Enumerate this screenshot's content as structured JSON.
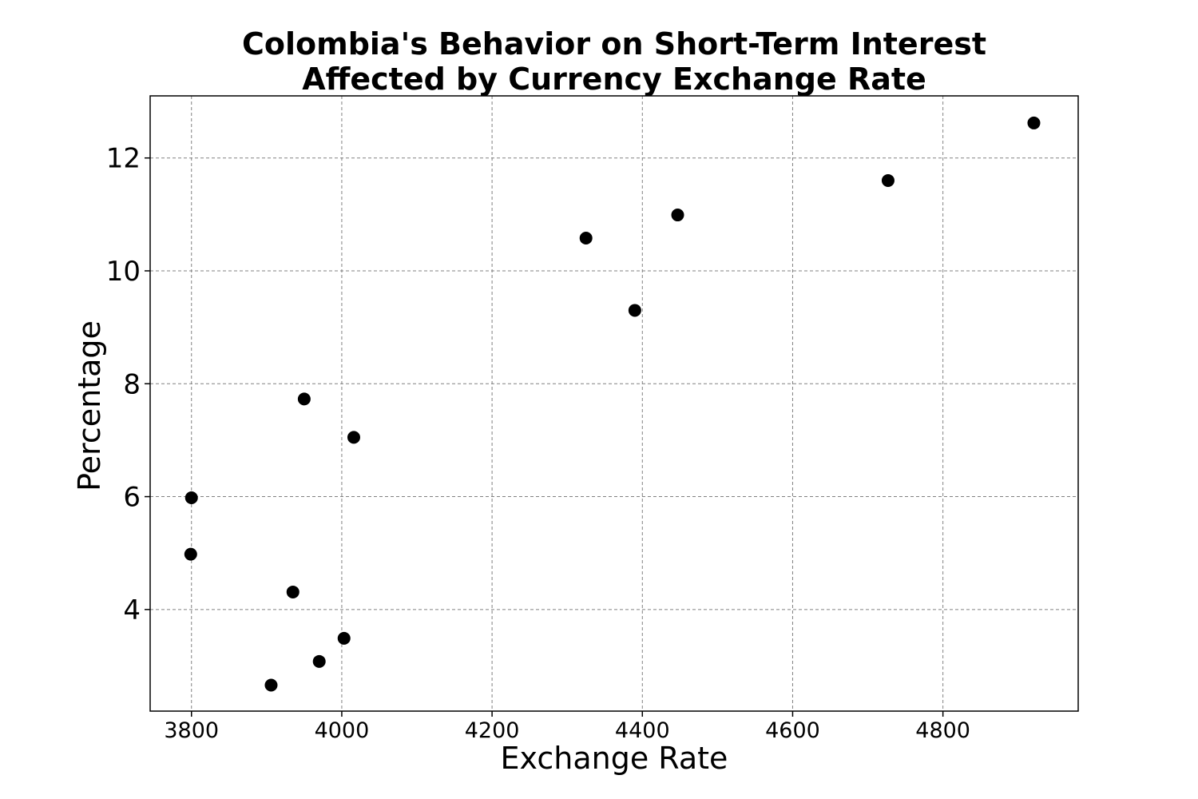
{
  "chart_data": {
    "type": "scatter",
    "title": "Colombia's Behavior on Short-Term Interest\nAffected by Currency Exchange Rate",
    "xlabel": "Exchange Rate",
    "ylabel": "Percentage",
    "xlim": [
      3745,
      4980
    ],
    "ylim": [
      2.2,
      13.1
    ],
    "xticks": [
      3800,
      4000,
      4200,
      4400,
      4600,
      4800
    ],
    "yticks": [
      4,
      6,
      8,
      10,
      12
    ],
    "grid": true,
    "marker_color": "#000000",
    "series": [
      {
        "points": [
          {
            "x": 3800,
            "y": 5.98
          },
          {
            "x": 3799,
            "y": 4.98
          },
          {
            "x": 3950,
            "y": 7.73
          },
          {
            "x": 4016,
            "y": 7.05
          },
          {
            "x": 3935,
            "y": 4.31
          },
          {
            "x": 3906,
            "y": 2.66
          },
          {
            "x": 3970,
            "y": 3.08
          },
          {
            "x": 4003,
            "y": 3.49
          },
          {
            "x": 4325,
            "y": 10.58
          },
          {
            "x": 4390,
            "y": 9.3
          },
          {
            "x": 4447,
            "y": 10.99
          },
          {
            "x": 4727,
            "y": 11.6
          },
          {
            "x": 4921,
            "y": 12.62
          }
        ]
      }
    ]
  }
}
